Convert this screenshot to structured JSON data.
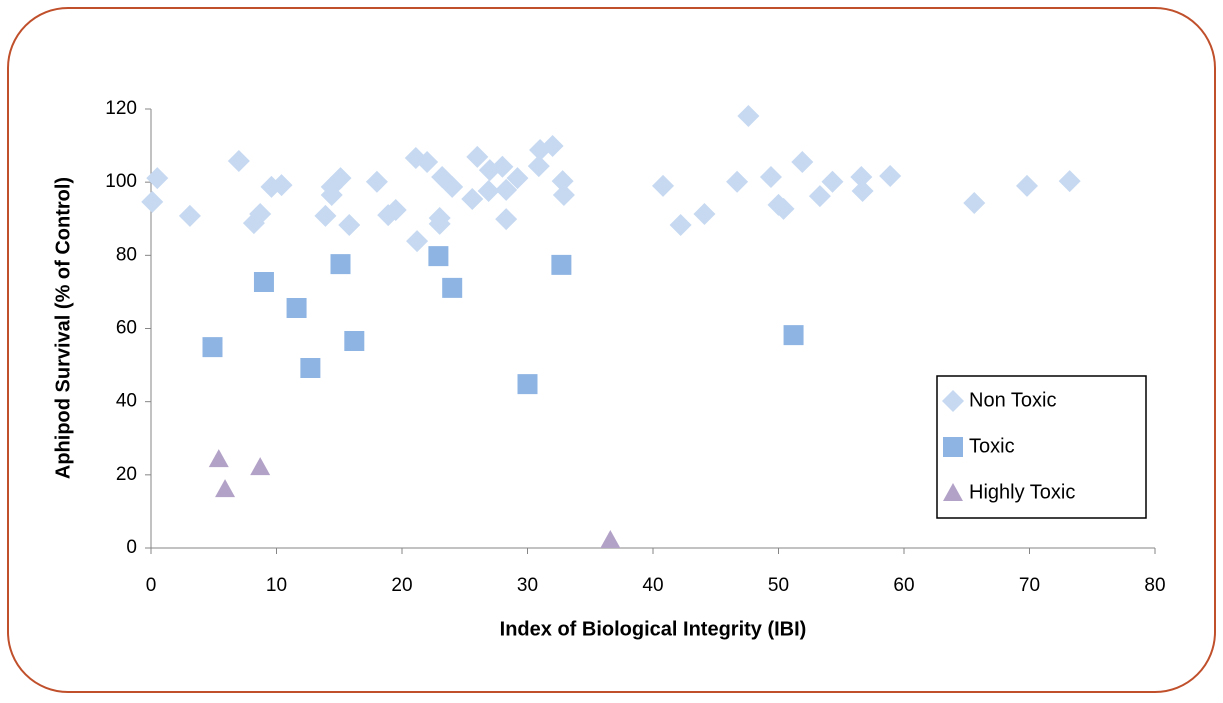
{
  "chart_data": {
    "type": "scatter",
    "x_label": "Index of Biological Integrity (IBI)",
    "y_label": "Aphipod Survival (% of Control)",
    "xlim": [
      0,
      80
    ],
    "xticks": [
      0,
      10,
      20,
      30,
      40,
      50,
      60,
      70,
      80
    ],
    "ylim": [
      0,
      120
    ],
    "yticks": [
      0,
      20,
      40,
      60,
      80,
      100,
      120
    ],
    "legend": "right",
    "series": [
      {
        "name": "Non Toxic",
        "color": "#c6d9f1",
        "marker": "diamond",
        "x": [
          0.1,
          0.5,
          3.1,
          7.0,
          8.2,
          8.7,
          9.6,
          10.4,
          13.9,
          14.4,
          14.4,
          15.1,
          15.8,
          18.0,
          18.9,
          19.5,
          21.1,
          21.2,
          22.0,
          23.0,
          23.0,
          23.2,
          24.0,
          25.6,
          26.0,
          26.9,
          27.0,
          28.0,
          28.3,
          28.3,
          29.2,
          31.0,
          30.9,
          32.0,
          32.8,
          32.9,
          40.8,
          42.2,
          44.1,
          46.7,
          47.6,
          49.4,
          50.0,
          50.4,
          51.9,
          53.3,
          54.3,
          56.6,
          56.7,
          58.9,
          65.6,
          69.8,
          73.2
        ],
        "values": [
          94.6,
          101.1,
          90.8,
          105.8,
          88.8,
          91.3,
          98.7,
          99.2,
          90.8,
          98.7,
          96.5,
          101.1,
          88.3,
          100.1,
          91.0,
          92.4,
          106.6,
          83.9,
          105.5,
          88.6,
          90.2,
          101.4,
          98.7,
          95.4,
          106.9,
          97.6,
          103.3,
          104.2,
          89.9,
          97.9,
          101.1,
          108.8,
          104.4,
          109.9,
          100.3,
          96.5,
          99.0,
          88.3,
          91.3,
          100.1,
          118.1,
          101.4,
          93.8,
          92.7,
          105.5,
          96.2,
          100.1,
          101.4,
          97.6,
          101.7,
          94.3,
          99.0,
          100.3
        ]
      },
      {
        "name": "Toxic",
        "color": "#8eb4e3",
        "marker": "square",
        "x": [
          4.9,
          9.0,
          11.6,
          12.7,
          15.1,
          16.2,
          22.9,
          24.0,
          30.0,
          32.7,
          51.2
        ],
        "values": [
          54.9,
          72.7,
          65.6,
          49.2,
          77.6,
          56.6,
          79.8,
          71.1,
          44.8,
          77.4,
          58.2
        ]
      },
      {
        "name": "Highly Toxic",
        "color": "#b3a2c7",
        "marker": "triangle",
        "x": [
          5.4,
          5.9,
          8.7,
          36.6
        ],
        "values": [
          24.3,
          16.1,
          22.1,
          2.2
        ]
      }
    ]
  }
}
